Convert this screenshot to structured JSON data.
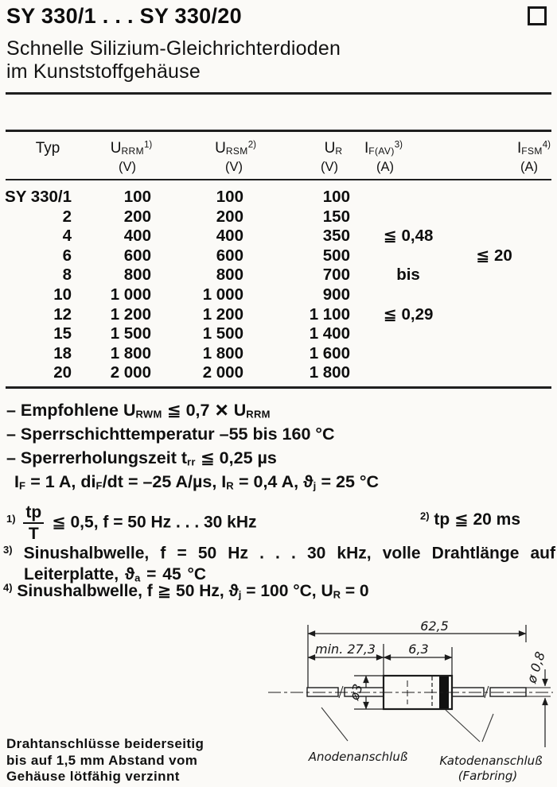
{
  "page_title": "SY 330/1 . . . SY 330/20",
  "subtitle": {
    "line1": "Schnelle Silizium-Gleichrichterdioden",
    "line2": "im Kunststoffgehäuse"
  },
  "table": {
    "headers": [
      {
        "parts": [
          {
            "t": "Typ"
          }
        ],
        "unit": ""
      },
      {
        "parts": [
          {
            "t": "U"
          },
          {
            "s": "sub",
            "t": "RRM"
          },
          {
            "s": "sup",
            "t": "1)"
          }
        ],
        "unit": "(V)"
      },
      {
        "parts": [
          {
            "t": "U"
          },
          {
            "s": "sub",
            "t": "RSM"
          },
          {
            "s": "sup",
            "t": "2)"
          }
        ],
        "unit": "(V)"
      },
      {
        "parts": [
          {
            "t": "U"
          },
          {
            "s": "sub",
            "t": "R"
          }
        ],
        "unit": "(V)"
      },
      {
        "parts": [
          {
            "t": "I"
          },
          {
            "s": "sub",
            "t": "F(AV)"
          },
          {
            "s": "sup",
            "t": "3)"
          }
        ],
        "unit": "(A)"
      },
      {
        "parts": [
          {
            "t": "I"
          },
          {
            "s": "sub",
            "t": "FSM"
          },
          {
            "s": "sup",
            "t": "4)"
          }
        ],
        "unit": "(A)"
      }
    ],
    "rows": [
      [
        "SY 330/1",
        "100",
        "100",
        "100",
        "",
        ""
      ],
      [
        "2",
        "200",
        "200",
        "150",
        "",
        ""
      ],
      [
        "4",
        "400",
        "400",
        "350",
        "≦ 0,48",
        ""
      ],
      [
        "6",
        "600",
        "600",
        "500",
        "",
        "≦ 20"
      ],
      [
        "8",
        "800",
        "800",
        "700",
        "bis",
        ""
      ],
      [
        "10",
        "1 000",
        "1 000",
        "900",
        "",
        ""
      ],
      [
        "12",
        "1 200",
        "1 200",
        "1 100",
        "≦ 0,29",
        ""
      ],
      [
        "15",
        "1 500",
        "1 500",
        "1 400",
        "",
        ""
      ],
      [
        "18",
        "1 800",
        "1 800",
        "1 600",
        "",
        ""
      ],
      [
        "20",
        "2 000",
        "2 000",
        "1 800",
        "",
        ""
      ]
    ]
  },
  "notes": {
    "n1": [
      {
        "t": "– Empfohlene U"
      },
      {
        "s": "sub",
        "t": "RWM"
      },
      {
        "t": " ≦ 0,7 "
      },
      {
        "s": "big",
        "t": "×"
      },
      {
        "t": " U"
      },
      {
        "s": "sub",
        "t": "RRM"
      }
    ],
    "n2": [
      {
        "t": "– Sperrschichttemperatur –55 bis 160 °C"
      }
    ],
    "n3": [
      {
        "t": "– Sperrerholungszeit t"
      },
      {
        "s": "sub",
        "t": "rr"
      },
      {
        "t": " ≦ 0,25 µs"
      }
    ],
    "n4": [
      {
        "t": "I"
      },
      {
        "s": "sub",
        "t": "F"
      },
      {
        "t": " = 1 A, di"
      },
      {
        "s": "sub",
        "t": "F"
      },
      {
        "t": "/dt = –25 A/µs, I"
      },
      {
        "s": "sub",
        "t": "R"
      },
      {
        "t": " = 0,4 A, ϑ"
      },
      {
        "s": "sub",
        "t": "j"
      },
      {
        "t": " = 25 °C"
      }
    ]
  },
  "footnotes": {
    "f1": [
      {
        "s": "sup",
        "t": "1)"
      },
      {
        "t": " "
      },
      {
        "s": "frac",
        "num": "tp",
        "den": "T"
      },
      {
        "t": " ≦ 0,5, f = 50 Hz . . . 30 kHz"
      }
    ],
    "f2": [
      {
        "s": "sup",
        "t": "2)"
      },
      {
        "t": " tp ≦ 20 ms"
      }
    ],
    "f3": [
      {
        "s": "sup",
        "t": "3)"
      },
      {
        "t": " Sinushalbwelle, f = 50 Hz . . . 30 kHz, volle Drahtlänge auf Leiterplatte, ϑ"
      },
      {
        "s": "sub",
        "t": "a"
      },
      {
        "t": " = 45 °C"
      }
    ],
    "f4": [
      {
        "s": "sup",
        "t": "4)"
      },
      {
        "t": " Sinushalbwelle, f ≧ 50 Hz, ϑ"
      },
      {
        "s": "sub",
        "t": "j"
      },
      {
        "t": " = 100 °C, U"
      },
      {
        "s": "sub",
        "t": "R"
      },
      {
        "t": " = 0"
      }
    ]
  },
  "diagram": {
    "dim_total": "62,5",
    "dim_lead_min": "min. 27,3",
    "dim_body": "6,3",
    "dim_body_dia": "ø3",
    "dim_lead_dia": "ø 0,8",
    "label_anode": "Anodenanschluß",
    "label_cathode": "Katodenanschluß",
    "label_cathode_sub": "(Farbring)"
  },
  "lead_note": {
    "line1": "Drahtanschlüsse beiderseitig",
    "line2": "bis auf 1,5 mm Abstand vom",
    "line3": "Gehäuse lötfähig verzinnt"
  }
}
